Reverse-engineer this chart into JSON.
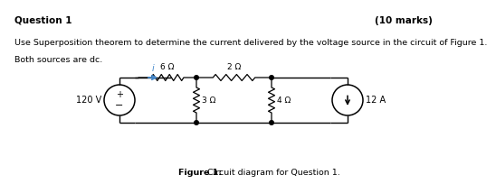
{
  "title_left": "Question 1",
  "title_right": "(10 marks)",
  "body_line1": "Use Superposition theorem to determine the current delivered by the voltage source in the circuit of Figure 1.",
  "body_line2": "Both sources are dc.",
  "caption_bold": "Figure 1:",
  "caption_normal": " Circuit diagram for Question 1.",
  "bg_color": "#ffffff",
  "text_color": "#000000",
  "resistor_6": "6 Ω",
  "resistor_2": "2 Ω",
  "resistor_3": "3 Ω",
  "resistor_4": "4 Ω",
  "voltage_label": "120 V",
  "current_label": "12 A",
  "current_i_label": "i",
  "arrow_color": "#4488cc"
}
